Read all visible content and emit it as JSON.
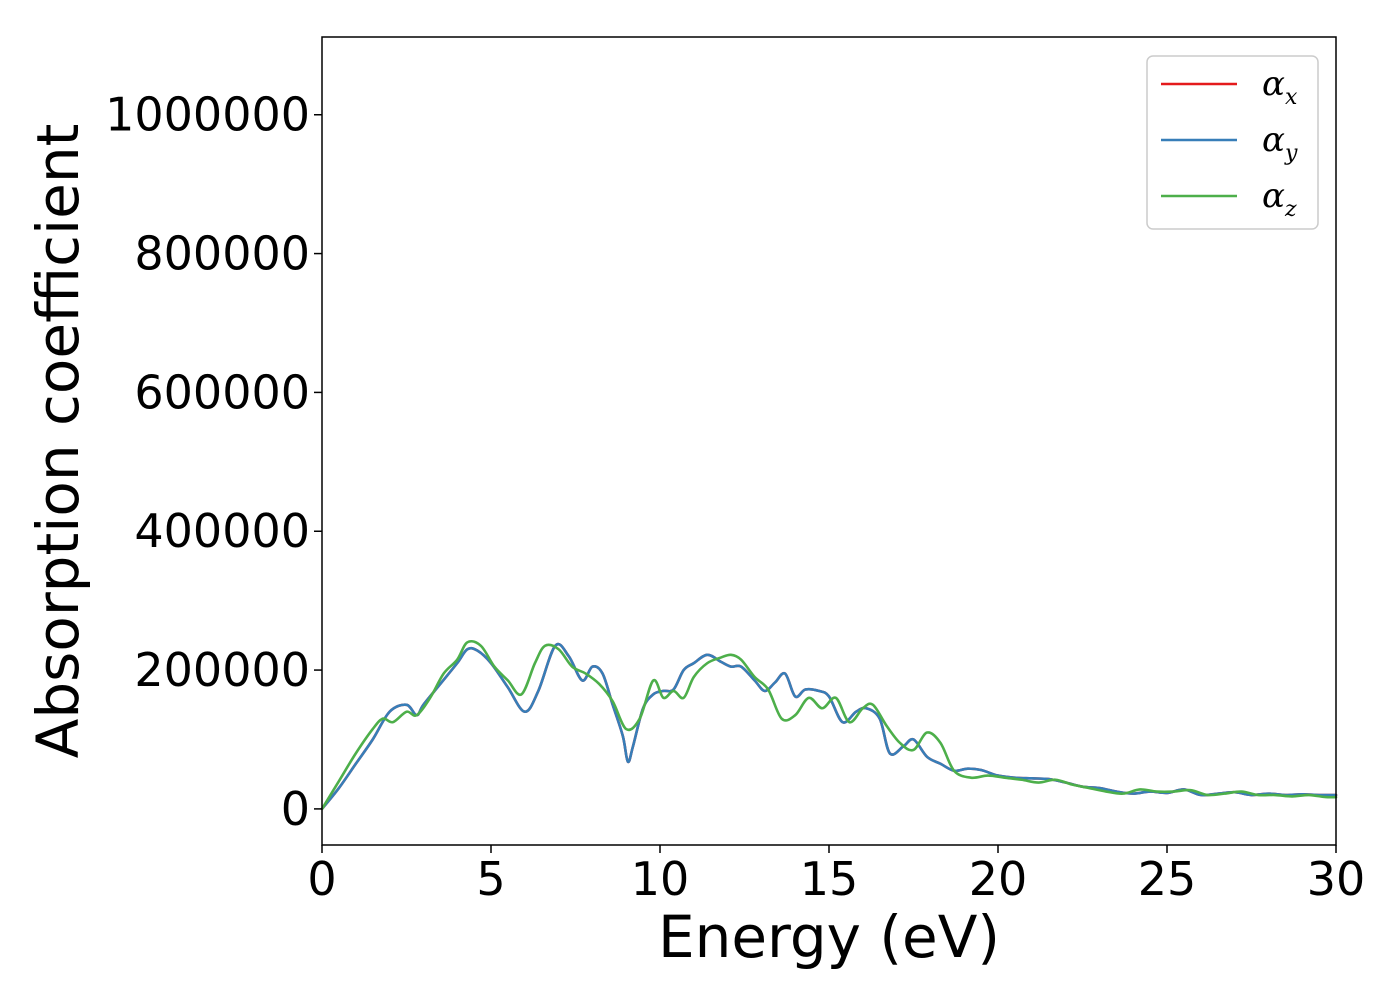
{
  "chart_data": {
    "type": "line",
    "title": "",
    "xlabel": "Energy (eV)",
    "ylabel": "Absorption coefficient",
    "xlim": [
      0,
      30
    ],
    "ylim": [
      -52000,
      1112000
    ],
    "xticks": [
      0,
      5,
      10,
      15,
      20,
      25,
      30
    ],
    "xtick_labels": [
      "0",
      "5",
      "10",
      "15",
      "20",
      "25",
      "30"
    ],
    "yticks": [
      0,
      200000,
      400000,
      600000,
      800000,
      1000000
    ],
    "ytick_labels": [
      "0",
      "200000",
      "400000",
      "600000",
      "800000",
      "1000000"
    ],
    "grid": false,
    "legend_position": "top-right",
    "series": [
      {
        "name": "α_x",
        "symbol": "α",
        "subscript": "x",
        "color": "#e41a1c",
        "x": [
          0,
          0.5,
          1,
          1.5,
          2,
          2.5,
          2.8,
          3,
          3.5,
          4,
          4.3,
          4.6,
          5,
          5.5,
          6,
          6.4,
          6.9,
          7.3,
          7.7,
          8,
          8.3,
          8.6,
          8.9,
          9.05,
          9.2,
          9.5,
          9.8,
          10.1,
          10.4,
          10.7,
          11,
          11.4,
          11.8,
          12.1,
          12.4,
          12.8,
          13.1,
          13.4,
          13.7,
          14,
          14.3,
          14.7,
          15,
          15.4,
          15.8,
          16.1,
          16.5,
          16.8,
          17.2,
          17.5,
          17.9,
          18.3,
          18.7,
          19.1,
          19.5,
          20,
          20.5,
          21,
          21.5,
          22,
          22.5,
          23,
          23.5,
          24,
          24.5,
          25,
          25.5,
          26,
          26.5,
          27,
          27.5,
          28,
          28.5,
          29,
          29.5,
          30
        ],
        "values": [
          0,
          30000,
          65000,
          100000,
          140000,
          150000,
          135000,
          150000,
          180000,
          210000,
          230000,
          228000,
          210000,
          175000,
          140000,
          170000,
          235000,
          220000,
          185000,
          205000,
          195000,
          150000,
          105000,
          68000,
          90000,
          145000,
          165000,
          170000,
          172000,
          200000,
          210000,
          222000,
          212000,
          205000,
          205000,
          185000,
          170000,
          182000,
          195000,
          162000,
          172000,
          170000,
          162000,
          125000,
          140000,
          145000,
          130000,
          80000,
          90000,
          100000,
          75000,
          65000,
          55000,
          58000,
          56000,
          48000,
          45000,
          44000,
          43000,
          38000,
          32000,
          30000,
          25000,
          22000,
          25000,
          23000,
          28000,
          20000,
          22000,
          24000,
          20000,
          22000,
          20000,
          21000,
          20000,
          20000
        ]
      },
      {
        "name": "α_y",
        "symbol": "α",
        "subscript": "y",
        "color": "#377eb8",
        "x": [
          0,
          0.5,
          1,
          1.5,
          2,
          2.5,
          2.8,
          3,
          3.5,
          4,
          4.3,
          4.6,
          5,
          5.5,
          6,
          6.4,
          6.9,
          7.3,
          7.7,
          8,
          8.3,
          8.6,
          8.9,
          9.05,
          9.2,
          9.5,
          9.8,
          10.1,
          10.4,
          10.7,
          11,
          11.4,
          11.8,
          12.1,
          12.4,
          12.8,
          13.1,
          13.4,
          13.7,
          14,
          14.3,
          14.7,
          15,
          15.4,
          15.8,
          16.1,
          16.5,
          16.8,
          17.2,
          17.5,
          17.9,
          18.3,
          18.7,
          19.1,
          19.5,
          20,
          20.5,
          21,
          21.5,
          22,
          22.5,
          23,
          23.5,
          24,
          24.5,
          25,
          25.5,
          26,
          26.5,
          27,
          27.5,
          28,
          28.5,
          29,
          29.5,
          30
        ],
        "values": [
          0,
          30000,
          65000,
          100000,
          140000,
          150000,
          135000,
          150000,
          180000,
          210000,
          230000,
          228000,
          210000,
          175000,
          140000,
          170000,
          235000,
          220000,
          185000,
          205000,
          195000,
          150000,
          105000,
          68000,
          90000,
          145000,
          165000,
          170000,
          172000,
          200000,
          210000,
          222000,
          212000,
          205000,
          205000,
          185000,
          170000,
          182000,
          195000,
          162000,
          172000,
          170000,
          162000,
          125000,
          140000,
          145000,
          130000,
          80000,
          90000,
          100000,
          75000,
          65000,
          55000,
          58000,
          56000,
          48000,
          45000,
          44000,
          43000,
          38000,
          32000,
          30000,
          25000,
          22000,
          25000,
          23000,
          28000,
          20000,
          22000,
          24000,
          20000,
          22000,
          20000,
          21000,
          20000,
          20000
        ]
      },
      {
        "name": "α_z",
        "symbol": "α",
        "subscript": "z",
        "color": "#4daf4a",
        "x": [
          0,
          0.5,
          1,
          1.5,
          1.8,
          2.1,
          2.5,
          2.8,
          3.2,
          3.6,
          4,
          4.3,
          4.7,
          5.1,
          5.5,
          5.9,
          6.3,
          6.6,
          7,
          7.4,
          7.8,
          8.2,
          8.6,
          9,
          9.4,
          9.8,
          10.1,
          10.4,
          10.7,
          11,
          11.4,
          11.8,
          12.1,
          12.4,
          12.8,
          13.2,
          13.6,
          14,
          14.4,
          14.8,
          15.2,
          15.6,
          16,
          16.3,
          16.7,
          17.1,
          17.5,
          17.9,
          18.3,
          18.7,
          19.2,
          19.7,
          20.2,
          20.7,
          21.2,
          21.7,
          22.2,
          22.7,
          23.2,
          23.7,
          24.2,
          24.7,
          25.2,
          25.7,
          26.2,
          26.7,
          27.2,
          27.7,
          28.2,
          28.7,
          29.2,
          29.7,
          30
        ],
        "values": [
          0,
          40000,
          80000,
          115000,
          130000,
          125000,
          140000,
          135000,
          160000,
          195000,
          215000,
          240000,
          235000,
          205000,
          185000,
          165000,
          210000,
          235000,
          230000,
          205000,
          195000,
          180000,
          155000,
          115000,
          130000,
          185000,
          160000,
          170000,
          160000,
          190000,
          210000,
          218000,
          222000,
          215000,
          190000,
          172000,
          130000,
          135000,
          160000,
          145000,
          160000,
          125000,
          145000,
          150000,
          120000,
          95000,
          85000,
          110000,
          95000,
          55000,
          45000,
          48000,
          45000,
          42000,
          38000,
          42000,
          35000,
          30000,
          25000,
          22000,
          28000,
          25000,
          25000,
          27000,
          20000,
          22000,
          25000,
          20000,
          20000,
          18000,
          20000,
          17000,
          17000
        ]
      }
    ]
  }
}
